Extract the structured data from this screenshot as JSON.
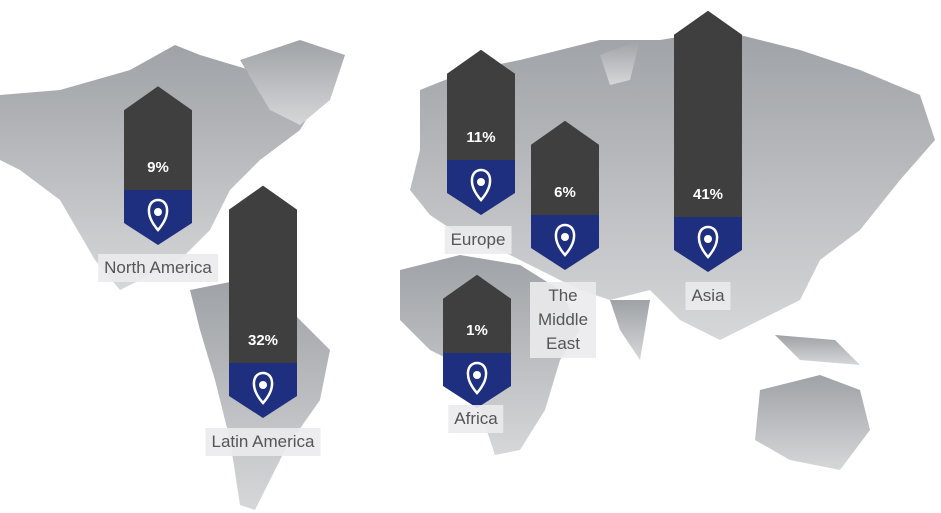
{
  "chart_data": {
    "type": "bar",
    "categories": [
      "North America",
      "Latin America",
      "Europe",
      "The Middle East",
      "Africa",
      "Asia"
    ],
    "values": [
      9,
      32,
      11,
      6,
      1,
      41
    ],
    "value_labels": [
      "9%",
      "32%",
      "11%",
      "6%",
      "1%",
      "41%"
    ],
    "color": "#3f3f3f",
    "pin_color": "#1e2f80"
  }
}
